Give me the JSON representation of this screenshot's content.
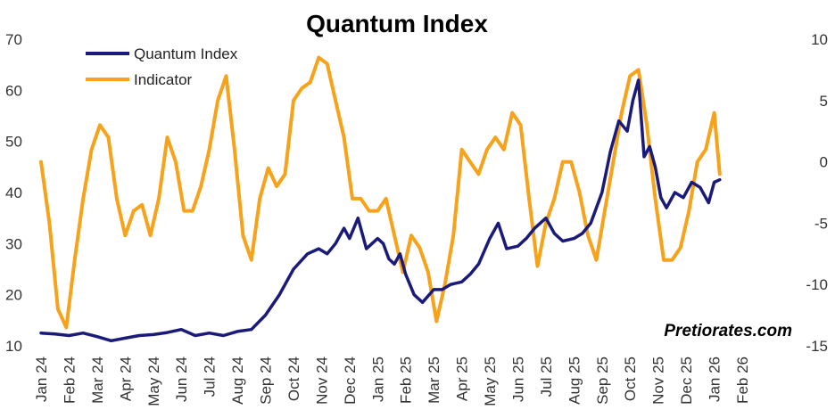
{
  "chart_data": {
    "type": "line",
    "title": "Quantum Index",
    "watermark": "Pretiorates.com",
    "x_labels": [
      "Jan 24",
      "Feb 24",
      "Mar 24",
      "Apr 24",
      "May 24",
      "Jun 24",
      "Jul 24",
      "Aug 24",
      "Sep 24",
      "Oct 24",
      "Nov 24",
      "Dec 24",
      "Jan 25",
      "Feb 25",
      "Mar 25",
      "Apr 25",
      "May 25",
      "Jun 25",
      "Jul 25",
      "Aug 25",
      "Sep 25",
      "Oct 25",
      "Nov 25",
      "Dec 25",
      "Jan 26",
      "Feb 26"
    ],
    "y_left": {
      "min": 10,
      "max": 70,
      "ticks": [
        10,
        20,
        30,
        40,
        50,
        60,
        70
      ]
    },
    "y_right": {
      "min": -15,
      "max": 10,
      "ticks": [
        -15,
        -10,
        -5,
        0,
        5,
        10
      ]
    },
    "legend_position": "top-left",
    "series": [
      {
        "name": "Quantum Index",
        "axis": "left",
        "color": "#1a1a7a",
        "x": [
          0,
          0.5,
          1,
          1.5,
          2,
          2.5,
          3,
          3.5,
          4,
          4.5,
          5,
          5.5,
          6,
          6.5,
          7,
          7.5,
          8,
          8.5,
          9,
          9.5,
          9.9,
          10.2,
          10.5,
          10.8,
          11,
          11.3,
          11.6,
          12,
          12.2,
          12.4,
          12.6,
          12.8,
          13,
          13.3,
          13.6,
          14,
          14.3,
          14.6,
          15,
          15.3,
          15.6,
          16,
          16.3,
          16.6,
          17,
          17.3,
          17.6,
          18,
          18.3,
          18.6,
          19,
          19.3,
          19.6,
          20,
          20.3,
          20.6,
          20.9,
          21.1,
          21.3,
          21.5,
          21.7,
          21.9,
          22.1,
          22.3,
          22.6,
          22.9,
          23.2,
          23.5,
          23.8,
          24,
          24.2
        ],
        "values": [
          12.5,
          12.3,
          12.0,
          12.5,
          11.8,
          11.0,
          11.5,
          12.0,
          12.2,
          12.6,
          13.2,
          12.0,
          12.5,
          12.0,
          12.8,
          13.2,
          16.0,
          20.0,
          25.0,
          28.0,
          29.0,
          28.0,
          30.0,
          33.0,
          31.0,
          35.0,
          29.0,
          31.0,
          30.0,
          27.0,
          26.0,
          28.0,
          24.0,
          20.0,
          18.5,
          21.0,
          21.0,
          22.0,
          22.5,
          24.0,
          26.0,
          31.0,
          34.0,
          29.0,
          29.5,
          31.0,
          33.0,
          35.0,
          32.0,
          30.5,
          31.0,
          32.0,
          34.0,
          40.0,
          48.0,
          54.0,
          52.0,
          58.0,
          62.0,
          47.0,
          49.0,
          45.0,
          39.0,
          37.0,
          40.0,
          39.0,
          42.0,
          41.0,
          38.0,
          42.0,
          42.5
        ]
      },
      {
        "name": "Indicator",
        "axis": "right",
        "color": "#f7a21b",
        "x": [
          0,
          0.3,
          0.6,
          0.9,
          1.2,
          1.5,
          1.8,
          2.1,
          2.4,
          2.7,
          3.0,
          3.3,
          3.6,
          3.9,
          4.2,
          4.5,
          4.8,
          5.1,
          5.4,
          5.7,
          6.0,
          6.3,
          6.6,
          6.9,
          7.2,
          7.5,
          7.8,
          8.1,
          8.4,
          8.7,
          9.0,
          9.3,
          9.6,
          9.9,
          10.2,
          10.5,
          10.8,
          11.1,
          11.4,
          11.7,
          12.0,
          12.3,
          12.6,
          12.9,
          13.2,
          13.5,
          13.8,
          14.1,
          14.4,
          14.7,
          15.0,
          15.3,
          15.6,
          15.9,
          16.2,
          16.5,
          16.8,
          17.1,
          17.4,
          17.7,
          18.0,
          18.3,
          18.6,
          18.9,
          19.2,
          19.5,
          19.8,
          20.1,
          20.4,
          20.7,
          21.0,
          21.3,
          21.6,
          21.9,
          22.2,
          22.5,
          22.8,
          23.1,
          23.4,
          23.7,
          24.0,
          24.2
        ],
        "values": [
          0,
          -5,
          -12,
          -13.5,
          -8,
          -3,
          1,
          3,
          2,
          -3,
          -6,
          -4,
          -3.5,
          -6,
          -3,
          2,
          0,
          -4,
          -4,
          -2,
          1,
          5,
          7,
          1,
          -6,
          -8,
          -3,
          -0.5,
          -2,
          -1,
          5,
          6,
          6.5,
          8.5,
          8,
          5,
          2,
          -3,
          -3,
          -4,
          -4,
          -3,
          -6,
          -9,
          -6,
          -7,
          -9,
          -13,
          -10,
          -6,
          1,
          0,
          -1,
          1,
          2,
          1,
          4,
          3,
          -3,
          -8.5,
          -5,
          -3,
          0,
          0,
          -2.5,
          -6,
          -8,
          -4,
          0,
          4,
          7,
          7.5,
          3,
          -3,
          -8,
          -8,
          -7,
          -4,
          0,
          1,
          4,
          -1
        ]
      }
    ]
  }
}
